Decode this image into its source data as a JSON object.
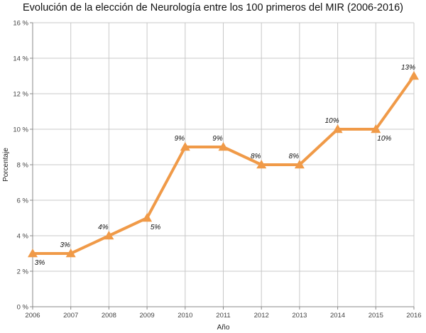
{
  "chart_data": {
    "type": "line",
    "title": "Evolución de la elección de Neurología entre los 100 primeros del MIR (2006-2016)",
    "xlabel": "Año",
    "ylabel": "Porcentaje",
    "categories": [
      "2006",
      "2007",
      "2008",
      "2009",
      "2010",
      "2011",
      "2012",
      "2013",
      "2014",
      "2015",
      "2016"
    ],
    "series": [
      {
        "values": [
          3,
          3,
          4,
          5,
          9,
          9,
          8,
          8,
          10,
          10,
          13
        ],
        "color": "#f09a48",
        "marker": "triangle"
      }
    ],
    "data_labels": [
      "3%",
      "3%",
      "4%",
      "5%",
      "9%",
      "9%",
      "8%",
      "8%",
      "10%",
      "10%",
      "13%"
    ],
    "label_placement": [
      "below",
      "above",
      "above",
      "below",
      "above",
      "above",
      "above",
      "above",
      "above",
      "below",
      "above"
    ],
    "ylim": [
      0,
      16
    ],
    "yticks": [
      0,
      2,
      4,
      6,
      8,
      10,
      12,
      14,
      16
    ],
    "ytick_labels": [
      "0 %",
      "2 %",
      "4 %",
      "6 %",
      "8 %",
      "10 %",
      "12 %",
      "14 %",
      "16 %"
    ],
    "grid": true
  }
}
